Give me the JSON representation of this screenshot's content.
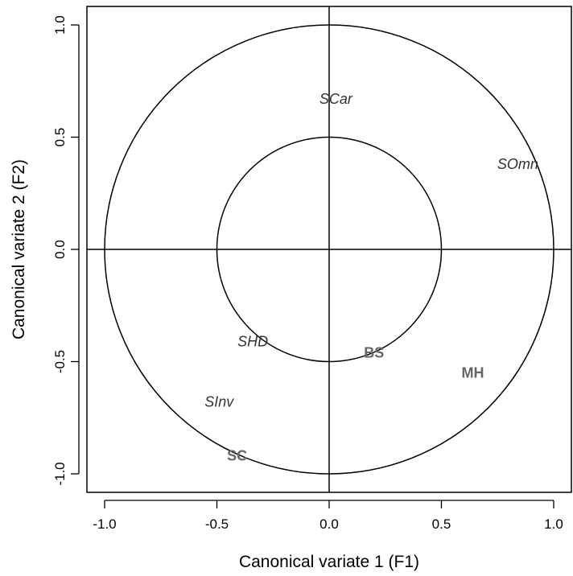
{
  "chart_data": {
    "type": "scatter",
    "title": "",
    "xlabel": "Canonical variate 1 (F1)",
    "ylabel": "Canonical variate 2 (F2)",
    "xlim": [
      -1.0,
      1.0
    ],
    "ylim": [
      -1.0,
      1.0
    ],
    "x_ticks": [
      "-1.0",
      "-0.5",
      "0.0",
      "0.5",
      "1.0"
    ],
    "y_ticks": [
      "-1.0",
      "-0.5",
      "0.0",
      "0.5",
      "1.0"
    ],
    "grid": false,
    "reference_circles": [
      0.5,
      1.0
    ],
    "reference_lines": {
      "x": 0,
      "y": 0
    },
    "points": [
      {
        "label": "SCar",
        "x": 0.03,
        "y": 0.67,
        "style": "italic",
        "color": "#333333"
      },
      {
        "label": "SOmn",
        "x": 0.84,
        "y": 0.38,
        "style": "italic",
        "color": "#333333"
      },
      {
        "label": "SHD",
        "x": -0.34,
        "y": -0.41,
        "style": "italic",
        "color": "#333333"
      },
      {
        "label": "BS",
        "x": 0.2,
        "y": -0.46,
        "style": "bold",
        "color": "#666666"
      },
      {
        "label": "MH",
        "x": 0.64,
        "y": -0.55,
        "style": "bold",
        "color": "#666666"
      },
      {
        "label": "SInv",
        "x": -0.49,
        "y": -0.68,
        "style": "italic",
        "color": "#333333"
      },
      {
        "label": "SC",
        "x": -0.41,
        "y": -0.92,
        "style": "bold",
        "color": "#666666"
      }
    ]
  }
}
